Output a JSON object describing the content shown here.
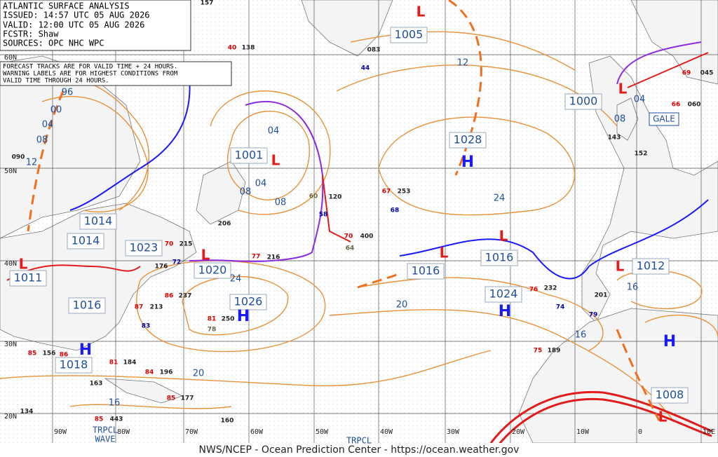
{
  "header": {
    "title": "ATLANTIC SURFACE ANALYSIS",
    "issued": "ISSUED: 14:57 UTC 05 AUG 2026",
    "valid": "VALID:  12:00 UTC 05 AUG 2026",
    "forecaster": "FCSTR:  Shaw",
    "sources": "SOURCES: OPC NHC WPC"
  },
  "notice": [
    "FORECAST TRACKS ARE FOR VALID TIME + 24 HOURS.",
    "WARNING LABELS ARE FOR HIGHEST CONDITIONS FROM",
    "VALID TIME THROUGH 24 HOURS."
  ],
  "pressure_labels": [
    "1005",
    "1001",
    "1014",
    "1014",
    "1011",
    "1016",
    "1023",
    "1020",
    "1026",
    "1028",
    "1016",
    "1016",
    "1024",
    "1012",
    "1000",
    "1018",
    "1008"
  ],
  "lows": [
    "L",
    "L",
    "L",
    "L",
    "L",
    "L",
    "L",
    "L",
    "L"
  ],
  "highs": [
    "H",
    "H",
    "H",
    "H",
    "H"
  ],
  "isobar_labels": [
    "96",
    "00",
    "04",
    "08",
    "12",
    "12",
    "04",
    "04",
    "08",
    "08",
    "24",
    "24",
    "20",
    "16",
    "16",
    "20",
    "16",
    "04",
    "08"
  ],
  "latitude_labels": [
    "60N",
    "50N",
    "40N",
    "30N",
    "20N"
  ],
  "longitude_labels": [
    "90W",
    "80W",
    "70W",
    "60W",
    "50W",
    "40W",
    "30W",
    "20W",
    "10W",
    "0",
    "10E"
  ],
  "warnings": [
    "GALE"
  ],
  "waves": [
    "TRPCL",
    "WAVE",
    "TRPCL"
  ],
  "stations": [
    "157",
    "138",
    "40",
    "083",
    "44",
    "253",
    "67",
    "68",
    "400",
    "70",
    "64",
    "120",
    "60",
    "58",
    "216",
    "77",
    "206",
    "215",
    "70",
    "176",
    "72",
    "237",
    "86",
    "213",
    "87",
    "83",
    "250",
    "81",
    "78",
    "232",
    "76",
    "74",
    "201",
    "79",
    "189",
    "75",
    "184",
    "81",
    "196",
    "84",
    "177",
    "85",
    "163",
    "160",
    "143",
    "152",
    "060",
    "66",
    "045",
    "69",
    "090",
    "156",
    "85",
    "86",
    "134",
    "85",
    "443"
  ],
  "footer": "NWS/NCEP - Ocean Prediction Center - https://ocean.weather.gov"
}
